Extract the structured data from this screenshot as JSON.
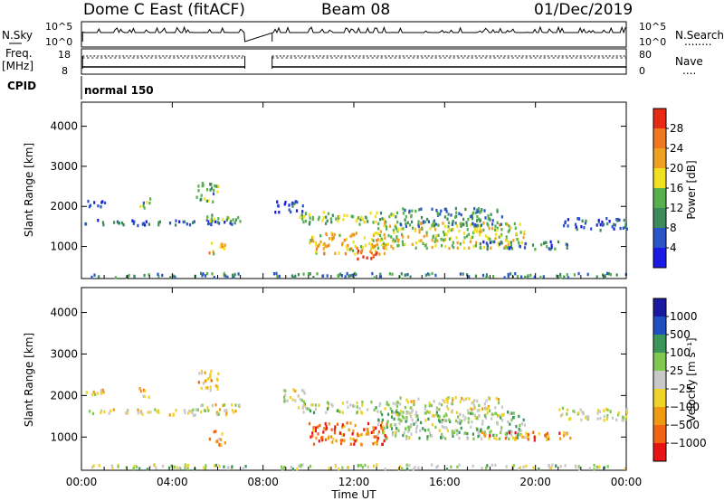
{
  "header": {
    "station": "Dome C East (fitACF)",
    "beam": "Beam 08",
    "date": "01/Dec/2019"
  },
  "side_labels": {
    "nsky": "N.Sky",
    "freq_top": "Freq.",
    "freq_unit": "[MHz]",
    "cpid": "CPID",
    "nsearch": "N.Search",
    "nave": "Nave",
    "nsearch_dots": "........",
    "nave_dots": "...."
  },
  "strip_ticks": {
    "nsky_top": "10^5",
    "nsky_bottom": "10^0",
    "nsearch_top": "10^5",
    "nsearch_bottom": "10^0",
    "freq_top": "18",
    "freq_bottom": "8",
    "nave_top": "80",
    "nave_bottom": "0"
  },
  "cpid_text": "normal 150",
  "time_axis": {
    "label": "Time UT",
    "ticks": [
      "00:00",
      "04:00",
      "08:00",
      "12:00",
      "16:00",
      "20:00",
      "00:00"
    ],
    "tick_hours": [
      0,
      4,
      8,
      12,
      16,
      20,
      24
    ],
    "range_hours": [
      0,
      24
    ],
    "data_gap_hours": [
      7.2,
      8.4
    ]
  },
  "colors": {
    "power": [
      "#1a1ae6",
      "#2a55c8",
      "#3f8a5a",
      "#56b04e",
      "#f0e020",
      "#f0a020",
      "#f07820",
      "#e62a14"
    ],
    "velocity": [
      "#e61414",
      "#f06414",
      "#f09a14",
      "#f0d228",
      "#c8c8c8",
      "#80c850",
      "#3c9658",
      "#2050c0",
      "#1a1aa0"
    ]
  },
  "chart_data": [
    {
      "type": "heatmap",
      "name": "power",
      "ylabel": "Slant Range [km]",
      "yticks": [
        1000,
        2000,
        3000,
        4000
      ],
      "ylim": [
        200,
        4600
      ],
      "xlim": [
        0,
        24
      ],
      "colorbar": {
        "label": "Power [dB]",
        "ticks": [
          "4",
          "8",
          "12",
          "16",
          "20",
          "24",
          "28"
        ],
        "range": [
          0,
          32
        ]
      },
      "scatter_regions": [
        {
          "t": [
            0.1,
            1.0
          ],
          "r": [
            1950,
            2150
          ],
          "level": 0.1
        },
        {
          "t": [
            0.1,
            6.9
          ],
          "r": [
            1520,
            1660
          ],
          "level": 0.2
        },
        {
          "t": [
            5.0,
            7.0
          ],
          "r": [
            1620,
            1780
          ],
          "level": 0.45
        },
        {
          "t": [
            5.0,
            6.0
          ],
          "r": [
            2100,
            2600
          ],
          "level": 0.4
        },
        {
          "t": [
            5.6,
            6.3
          ],
          "r": [
            800,
            1150
          ],
          "level": 0.6
        },
        {
          "t": [
            2.5,
            3.0
          ],
          "r": [
            1950,
            2250
          ],
          "level": 0.4
        },
        {
          "t": [
            0.1,
            24.0
          ],
          "r": [
            220,
            330
          ],
          "level": 0.3
        },
        {
          "t": [
            8.5,
            9.8
          ],
          "r": [
            1850,
            2150
          ],
          "level": 0.15
        },
        {
          "t": [
            9.5,
            14.0
          ],
          "r": [
            1550,
            1850
          ],
          "level": 0.45
        },
        {
          "t": [
            10.0,
            13.5
          ],
          "r": [
            800,
            1350
          ],
          "level": 0.65
        },
        {
          "t": [
            12.0,
            13.0
          ],
          "r": [
            680,
            900
          ],
          "level": 0.9
        },
        {
          "t": [
            13.0,
            19.5
          ],
          "r": [
            950,
            1600
          ],
          "level": 0.55
        },
        {
          "t": [
            14.0,
            18.5
          ],
          "r": [
            1500,
            1950
          ],
          "level": 0.3
        },
        {
          "t": [
            17.5,
            21.5
          ],
          "r": [
            920,
            1120
          ],
          "level": 0.25
        },
        {
          "t": [
            21.0,
            24.0
          ],
          "r": [
            1400,
            1700
          ],
          "level": 0.2
        }
      ]
    },
    {
      "type": "heatmap",
      "name": "velocity",
      "ylabel": "Slant Range [km]",
      "yticks": [
        1000,
        2000,
        3000,
        4000
      ],
      "ylim": [
        200,
        4600
      ],
      "xlim": [
        0,
        24
      ],
      "colorbar": {
        "label": "Velocity [m s⁻¹]",
        "ticks": [
          "1000",
          "500",
          "100",
          "25",
          "−25",
          "−100",
          "−500",
          "−1000"
        ],
        "range": [
          -1000,
          1000
        ]
      },
      "scatter_regions": [
        {
          "t": [
            0.1,
            1.0
          ],
          "r": [
            1950,
            2150
          ],
          "level": 0.45
        },
        {
          "t": [
            0.1,
            6.9
          ],
          "r": [
            1520,
            1660
          ],
          "level": 0.45
        },
        {
          "t": [
            5.0,
            7.0
          ],
          "r": [
            1620,
            1780
          ],
          "level": 0.48
        },
        {
          "t": [
            5.0,
            6.0
          ],
          "r": [
            2100,
            2600
          ],
          "level": 0.35
        },
        {
          "t": [
            5.6,
            6.3
          ],
          "r": [
            800,
            1150
          ],
          "level": 0.3
        },
        {
          "t": [
            2.5,
            3.0
          ],
          "r": [
            1950,
            2250
          ],
          "level": 0.35
        },
        {
          "t": [
            0.1,
            24.0
          ],
          "r": [
            220,
            330
          ],
          "level": 0.55
        },
        {
          "t": [
            8.5,
            9.8
          ],
          "r": [
            1850,
            2150
          ],
          "level": 0.48
        },
        {
          "t": [
            9.5,
            14.0
          ],
          "r": [
            1550,
            1850
          ],
          "level": 0.55
        },
        {
          "t": [
            10.0,
            13.5
          ],
          "r": [
            800,
            1350
          ],
          "level": 0.2
        },
        {
          "t": [
            13.0,
            19.5
          ],
          "r": [
            950,
            1600
          ],
          "level": 0.6
        },
        {
          "t": [
            14.0,
            18.5
          ],
          "r": [
            1500,
            1950
          ],
          "level": 0.48
        },
        {
          "t": [
            17.5,
            21.5
          ],
          "r": [
            920,
            1120
          ],
          "level": 0.25
        },
        {
          "t": [
            21.0,
            24.0
          ],
          "r": [
            1400,
            1700
          ],
          "level": 0.5
        }
      ]
    }
  ]
}
